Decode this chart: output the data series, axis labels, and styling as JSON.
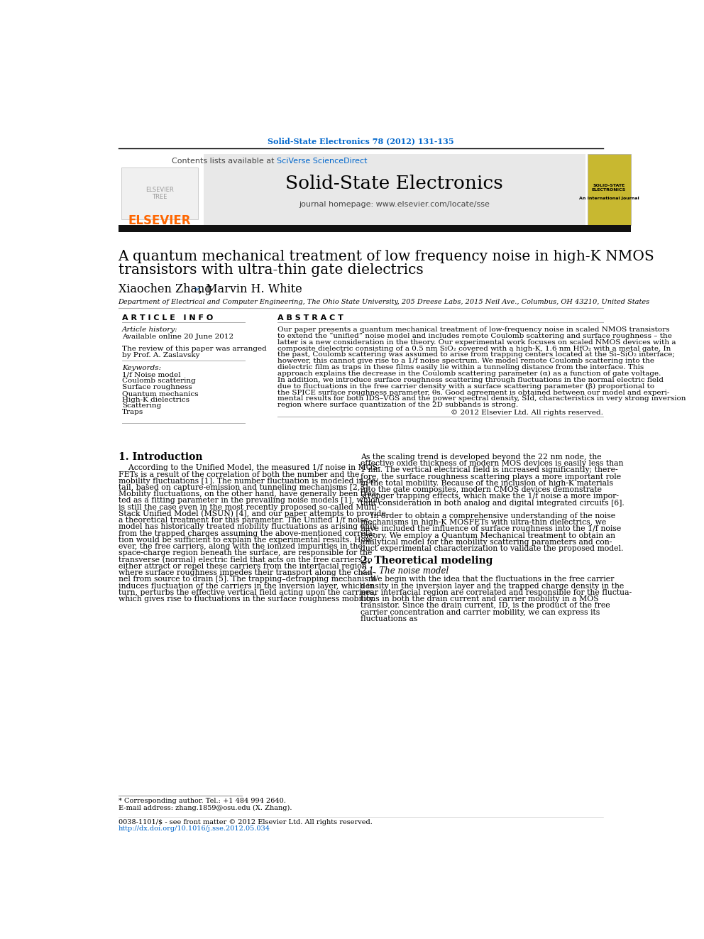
{
  "journal_ref": "Solid-State Electronics 78 (2012) 131-135",
  "contents_line1": "Contents lists available at ",
  "contents_line2": "SciVerse ScienceDirect",
  "journal_name": "Solid-State Electronics",
  "journal_url": "journal homepage: www.elsevier.com/locate/sse",
  "title_line1": "A quantum mechanical treatment of low frequency noise in high-K NMOS",
  "title_line2": "transistors with ultra-thin gate dielectrics",
  "author1": "Xiaochen Zhang",
  "author_star": "*",
  "author2": ", Marvin H. White",
  "affiliation": "Department of Electrical and Computer Engineering, The Ohio State University, 205 Dreese Labs, 2015 Neil Ave., Columbus, OH 43210, United States",
  "art_info_header": "A R T I C L E   I N F O",
  "abstract_header": "A B S T R A C T",
  "art_history_label": "Article history:",
  "art_history_val": "Available online 20 June 2012",
  "review_line1": "The review of this paper was arranged",
  "review_line2": "by Prof. A. Zaslavsky",
  "keywords_label": "Keywords:",
  "keywords": [
    "1/f Noise model",
    "Coulomb scattering",
    "Surface roughness",
    "Quantum mechanics",
    "High-K dielectrics",
    "Scattering",
    "Traps"
  ],
  "abstract_lines": [
    "Our paper presents a quantum mechanical treatment of low-frequency noise in scaled NMOS transistors",
    "to extend the “unified” noise model and includes remote Coulomb scattering and surface roughness – the",
    "latter is a new consideration in the theory. Our experimental work focuses on scaled NMOS devices with a",
    "composite dielectric consisting of a 0.5 nm SiO₂ covered with a high-K, 1.6 nm HfO₂ with a metal gate. In",
    "the past, Coulomb scattering was assumed to arise from trapping centers located at the Si–SiO₂ interface;",
    "however, this cannot give rise to a 1/f noise spectrum. We model remote Coulomb scattering into the",
    "dielectric film as traps in these films easily lie within a tunneling distance from the interface. This",
    "approach explains the decrease in the Coulomb scattering parameter (α) as a function of gate voltage.",
    "In addition, we introduce surface roughness scattering through fluctuations in the normal electric field",
    "due to fluctuations in the free carrier density with a surface scattering parameter (β) proportional to",
    "the SPICE surface roughness parameter, θs. Good agreement is obtained between our model and experi-",
    "mental results for both IDS–VGS and the power spectral density, SId, characteristics in very strong inversion",
    "region where surface quantization of the 2D subbands is strong."
  ],
  "copyright": "© 2012 Elsevier Ltd. All rights reserved.",
  "sec1_title": "1. Introduction",
  "col1_lines": [
    "    According to the Unified Model, the measured 1/f noise in MOS-",
    "FETs is a result of the correlation of both the number and the",
    "mobility fluctuations [1]. The number fluctuation is modeled in de-",
    "tail, based on capture-emission and tunneling mechanisms [2,3].",
    "Mobility fluctuations, on the other hand, have generally been trea-",
    "ted as a fitting parameter in the prevailing noise models [1], which",
    "is still the case even in the most recently proposed so-called Multi-",
    "Stack Unified Model (MSUN) [4], and our paper attempts to provide",
    "a theoretical treatment for this parameter. The Unified 1/f noise",
    "model has historically treated mobility fluctuations as arising only",
    "from the trapped charges assuming the above-mentioned correla-",
    "tion would be sufficient to explain the experimental results. How-",
    "ever, the free carriers, along with the ionized impurities in the",
    "space-charge region beneath the surface, are responsible for the",
    "transverse (normal) electric field that acts on the free carriers to",
    "either attract or repel these carriers from the interfacial region",
    "where surface roughness impedes their transport along the chan-",
    "nel from source to drain [5]. The trapping–detrapping mechanism",
    "induces fluctuation of the carriers in the inversion layer, which in",
    "turn, perturbs the effective vertical field acting upon the carriers,",
    "which gives rise to fluctuations in the surface roughness mobility."
  ],
  "col2_lines": [
    "As the scaling trend is developed beyond the 22 nm node, the",
    "effective oxide thickness of modern MOS devices is easily less than",
    "1 nm. The vertical electrical field is increased significantly; there-",
    "fore, the surface roughness scattering plays a more important role",
    "in the total mobility. Because of the inclusion of high-K materials",
    "into the gate composites, modern CMOS devices demonstrate",
    "stronger trapping effects, which make the 1/f noise a more impor-",
    "tant consideration in both analog and digital integrated circuits [6].",
    "",
    "    In order to obtain a comprehensive understanding of the noise",
    "mechanisms in high-K MOSFETs with ultra-thin dielectrics, we",
    "have included the influence of surface roughness into the 1/f noise",
    "theory. We employ a Quantum Mechanical treatment to obtain an",
    "analytical model for the mobility scattering parameters and con-",
    "duct experimental characterization to validate the proposed model."
  ],
  "sec2_title": "2. Theoretical modeling",
  "sec21_title": "2.1. The noise model",
  "sec21_lines": [
    "    We begin with the idea that the fluctuations in the free carrier",
    "density in the inversion layer and the trapped charge density in the",
    "near interfacial region are correlated and responsible for the fluctua-",
    "tions in both the drain current and carrier mobility in a MOS",
    "transistor. Since the drain current, ID, is the product of the free",
    "carrier concentration and carrier mobility, we can express its",
    "fluctuations as"
  ],
  "footnote1": "* Corresponding author. Tel.: +1 484 994 2640.",
  "footnote2": "E-mail address: zhang.1859@osu.edu (X. Zhang).",
  "footnote3": "0038-1101/$ - see front matter © 2012 Elsevier Ltd. All rights reserved.",
  "footnote4": "http://dx.doi.org/10.1016/j.sse.2012.05.034",
  "elsevier_color": "#FF6600",
  "link_color": "#0066CC",
  "header_bg": "#e8e8e8",
  "black_bar": "#111111"
}
